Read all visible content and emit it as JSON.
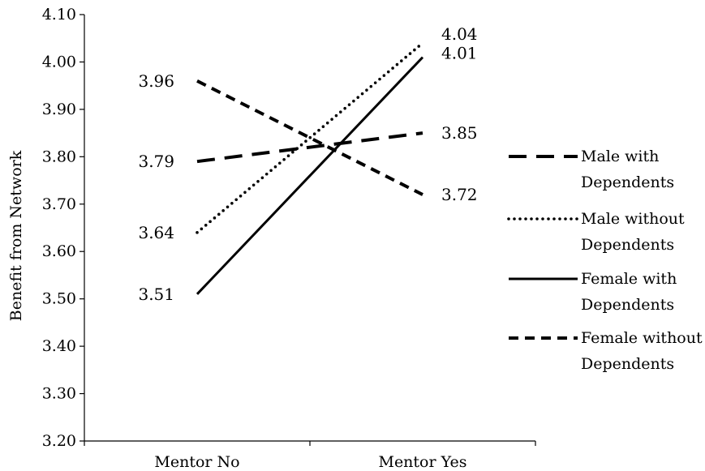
{
  "chart_data": {
    "type": "line",
    "title": "",
    "xlabel": "",
    "ylabel": "Benefit from Network",
    "categories": [
      "Mentor No",
      "Mentor Yes"
    ],
    "ylim": [
      3.2,
      4.1
    ],
    "yticks": [
      "3.20",
      "3.30",
      "3.40",
      "3.50",
      "3.60",
      "3.70",
      "3.80",
      "3.90",
      "4.00",
      "4.10"
    ],
    "grid": false,
    "legend_position": "right",
    "series": [
      {
        "name": "Male with Dependents",
        "name_lines": [
          "Male with",
          "Dependents"
        ],
        "values": [
          3.79,
          3.85
        ],
        "labels": [
          "3.79",
          "3.85"
        ],
        "dash": "long-dash",
        "color": "#000000"
      },
      {
        "name": "Male without Dependents",
        "name_lines": [
          "Male without",
          "Dependents"
        ],
        "values": [
          3.64,
          4.04
        ],
        "labels": [
          "3.64",
          "4.04"
        ],
        "dash": "dotted",
        "color": "#000000"
      },
      {
        "name": "Female with Dependents",
        "name_lines": [
          "Female with",
          "Dependents"
        ],
        "values": [
          3.51,
          4.01
        ],
        "labels": [
          "3.51",
          "4.01"
        ],
        "dash": "solid",
        "color": "#000000"
      },
      {
        "name": "Female without Dependents",
        "name_lines": [
          "Female without",
          "Dependents"
        ],
        "values": [
          3.96,
          3.72
        ],
        "labels": [
          "3.96",
          "3.72"
        ],
        "dash": "short-dash",
        "color": "#000000"
      }
    ]
  }
}
